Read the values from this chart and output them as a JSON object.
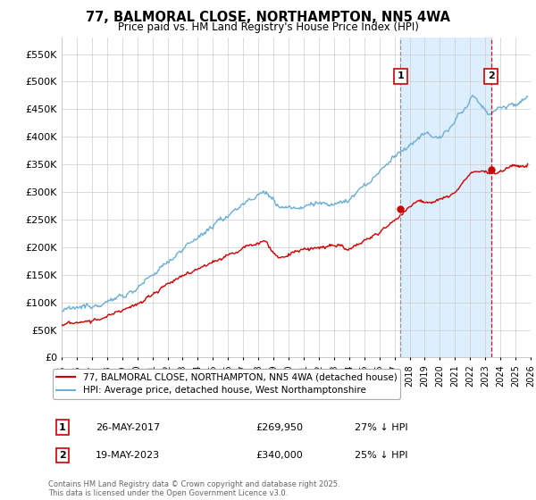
{
  "title": "77, BALMORAL CLOSE, NORTHAMPTON, NN5 4WA",
  "subtitle": "Price paid vs. HM Land Registry's House Price Index (HPI)",
  "legend_line1": "77, BALMORAL CLOSE, NORTHAMPTON, NN5 4WA (detached house)",
  "legend_line2": "HPI: Average price, detached house, West Northamptonshire",
  "annotation1_label": "1",
  "annotation1_date": "26-MAY-2017",
  "annotation1_price": "£269,950",
  "annotation1_hpi": "27% ↓ HPI",
  "annotation2_label": "2",
  "annotation2_date": "19-MAY-2023",
  "annotation2_price": "£340,000",
  "annotation2_hpi": "25% ↓ HPI",
  "footer": "Contains HM Land Registry data © Crown copyright and database right 2025.\nThis data is licensed under the Open Government Licence v3.0.",
  "hpi_color": "#6baed6",
  "price_color": "#cc0000",
  "vline1_color": "#888888",
  "vline2_color": "#cc0000",
  "fill_color": "#ddeeff",
  "ylim": [
    0,
    580000
  ],
  "yticks": [
    0,
    50000,
    100000,
    150000,
    200000,
    250000,
    300000,
    350000,
    400000,
    450000,
    500000,
    550000
  ],
  "sale1_x": 2017.4,
  "sale1_y": 269950,
  "sale2_x": 2023.38,
  "sale2_y": 340000,
  "xmin": 1995,
  "xmax": 2026
}
